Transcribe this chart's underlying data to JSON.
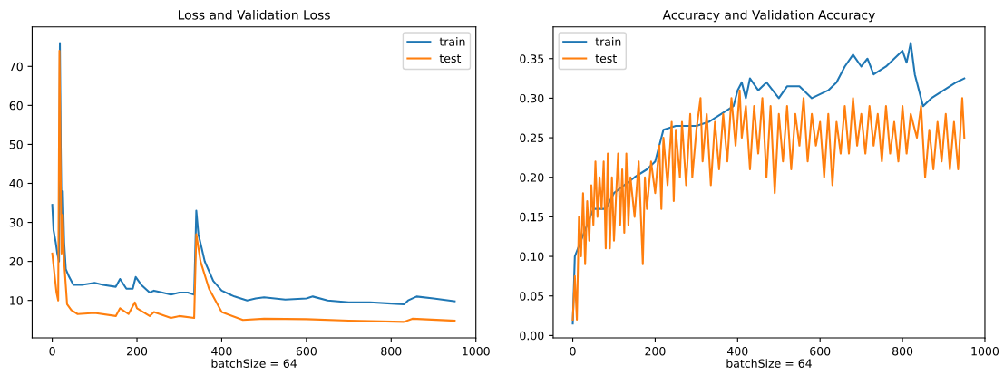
{
  "chart_data": [
    {
      "type": "line",
      "title": "Loss and Validation Loss",
      "xlabel": "batchSize = 64",
      "xlim": [
        -47.5,
        1000
      ],
      "xticks": [
        0,
        200,
        400,
        600,
        800,
        1000
      ],
      "ylim": [
        0.4,
        80.1
      ],
      "yticks": [
        10,
        20,
        30,
        40,
        50,
        60,
        70
      ],
      "legend": "top right",
      "grid": false,
      "series": [
        {
          "name": "train",
          "color": "#1f77b4",
          "x": [
            0,
            3,
            8,
            12,
            16,
            18,
            20,
            22,
            25,
            28,
            32,
            40,
            50,
            70,
            100,
            120,
            150,
            160,
            175,
            190,
            197,
            210,
            230,
            240,
            260,
            280,
            300,
            320,
            335,
            340,
            345,
            360,
            380,
            400,
            430,
            460,
            480,
            500,
            550,
            600,
            615,
            650,
            700,
            750,
            800,
            830,
            840,
            860,
            900,
            950
          ],
          "values": [
            34.5,
            28,
            25,
            22,
            20,
            76,
            50,
            32,
            38,
            25,
            18,
            16,
            14,
            14,
            14.5,
            14,
            13.5,
            15.5,
            13,
            13,
            16,
            14,
            12,
            12.5,
            12,
            11.5,
            12,
            12,
            11.5,
            33,
            27,
            20,
            15,
            12.5,
            11,
            10,
            10.5,
            10.8,
            10.2,
            10.5,
            11,
            10,
            9.5,
            9.5,
            9.2,
            9,
            10,
            11,
            10.5,
            9.8
          ]
        },
        {
          "name": "test",
          "color": "#ff7f0e",
          "x": [
            0,
            5,
            10,
            14,
            17,
            20,
            22,
            25,
            28,
            35,
            45,
            60,
            100,
            150,
            160,
            180,
            195,
            200,
            230,
            240,
            280,
            300,
            335,
            340,
            350,
            370,
            400,
            450,
            500,
            600,
            700,
            830,
            850,
            950
          ],
          "values": [
            22,
            17,
            12,
            10,
            74,
            40,
            22,
            32,
            20,
            9,
            7.5,
            6.5,
            6.8,
            6,
            8,
            6.5,
            9.5,
            8,
            6,
            7,
            5.5,
            6,
            5.5,
            27,
            20,
            13,
            7,
            5,
            5.3,
            5.2,
            4.8,
            4.5,
            5.3,
            4.8
          ]
        }
      ]
    },
    {
      "type": "line",
      "title": "Accuracy and Validation Accuracy",
      "xlabel": "batchSize = 64",
      "xlim": [
        -47.5,
        1000
      ],
      "xticks": [
        0,
        200,
        400,
        600,
        800,
        1000
      ],
      "ylim": [
        -0.003,
        0.39
      ],
      "yticks": [
        {
          "value": 0,
          "label": "0.00"
        },
        {
          "value": 0.05,
          "label": "0.05"
        },
        {
          "value": 0.1,
          "label": "0.10"
        },
        {
          "value": 0.15,
          "label": "0.15"
        },
        {
          "value": 0.2,
          "label": "0.20"
        },
        {
          "value": 0.25,
          "label": "0.25"
        },
        {
          "value": 0.3,
          "label": "0.30"
        },
        {
          "value": 0.35,
          "label": "0.35"
        }
      ],
      "legend": "top left",
      "grid": false,
      "series": [
        {
          "name": "train",
          "color": "#1f77b4",
          "x": [
            0,
            5,
            20,
            50,
            80,
            100,
            150,
            180,
            200,
            220,
            250,
            300,
            330,
            360,
            390,
            400,
            410,
            420,
            430,
            450,
            470,
            500,
            520,
            550,
            580,
            620,
            640,
            660,
            680,
            700,
            715,
            730,
            760,
            780,
            800,
            810,
            820,
            830,
            850,
            870,
            900,
            930,
            950
          ],
          "values": [
            0.015,
            0.1,
            0.12,
            0.16,
            0.16,
            0.18,
            0.2,
            0.21,
            0.22,
            0.26,
            0.265,
            0.265,
            0.27,
            0.28,
            0.29,
            0.31,
            0.32,
            0.3,
            0.325,
            0.31,
            0.32,
            0.3,
            0.315,
            0.315,
            0.3,
            0.31,
            0.32,
            0.34,
            0.355,
            0.34,
            0.35,
            0.33,
            0.34,
            0.35,
            0.36,
            0.345,
            0.37,
            0.33,
            0.29,
            0.3,
            0.31,
            0.32,
            0.325
          ]
        },
        {
          "name": "test",
          "color": "#ff7f0e",
          "x": [
            0,
            5,
            10,
            15,
            20,
            25,
            30,
            35,
            40,
            45,
            50,
            55,
            60,
            65,
            70,
            75,
            80,
            85,
            90,
            95,
            100,
            110,
            115,
            120,
            125,
            130,
            135,
            140,
            150,
            160,
            170,
            175,
            180,
            190,
            200,
            210,
            215,
            220,
            230,
            240,
            245,
            250,
            260,
            265,
            275,
            285,
            290,
            300,
            310,
            315,
            325,
            335,
            345,
            355,
            365,
            375,
            385,
            395,
            405,
            410,
            420,
            430,
            440,
            450,
            460,
            470,
            480,
            490,
            500,
            510,
            520,
            530,
            540,
            550,
            560,
            570,
            580,
            590,
            600,
            610,
            620,
            630,
            640,
            650,
            660,
            670,
            680,
            690,
            700,
            710,
            720,
            730,
            740,
            750,
            760,
            770,
            780,
            790,
            800,
            810,
            820,
            835,
            845,
            855,
            865,
            875,
            885,
            895,
            905,
            915,
            925,
            935,
            945,
            950
          ],
          "values": [
            0.02,
            0.075,
            0.02,
            0.15,
            0.1,
            0.18,
            0.09,
            0.17,
            0.12,
            0.19,
            0.14,
            0.22,
            0.15,
            0.2,
            0.16,
            0.22,
            0.11,
            0.23,
            0.11,
            0.2,
            0.12,
            0.23,
            0.14,
            0.21,
            0.13,
            0.23,
            0.14,
            0.2,
            0.15,
            0.22,
            0.09,
            0.2,
            0.16,
            0.22,
            0.18,
            0.24,
            0.16,
            0.25,
            0.19,
            0.27,
            0.17,
            0.26,
            0.2,
            0.27,
            0.19,
            0.28,
            0.2,
            0.26,
            0.3,
            0.22,
            0.28,
            0.19,
            0.27,
            0.21,
            0.28,
            0.22,
            0.3,
            0.24,
            0.31,
            0.25,
            0.29,
            0.21,
            0.29,
            0.23,
            0.3,
            0.2,
            0.29,
            0.18,
            0.28,
            0.22,
            0.29,
            0.21,
            0.28,
            0.24,
            0.3,
            0.22,
            0.28,
            0.24,
            0.27,
            0.2,
            0.28,
            0.19,
            0.27,
            0.23,
            0.29,
            0.23,
            0.3,
            0.24,
            0.28,
            0.23,
            0.29,
            0.24,
            0.28,
            0.22,
            0.29,
            0.23,
            0.27,
            0.22,
            0.29,
            0.23,
            0.28,
            0.25,
            0.29,
            0.2,
            0.26,
            0.21,
            0.27,
            0.22,
            0.28,
            0.21,
            0.27,
            0.21,
            0.3,
            0.25
          ]
        }
      ]
    }
  ]
}
